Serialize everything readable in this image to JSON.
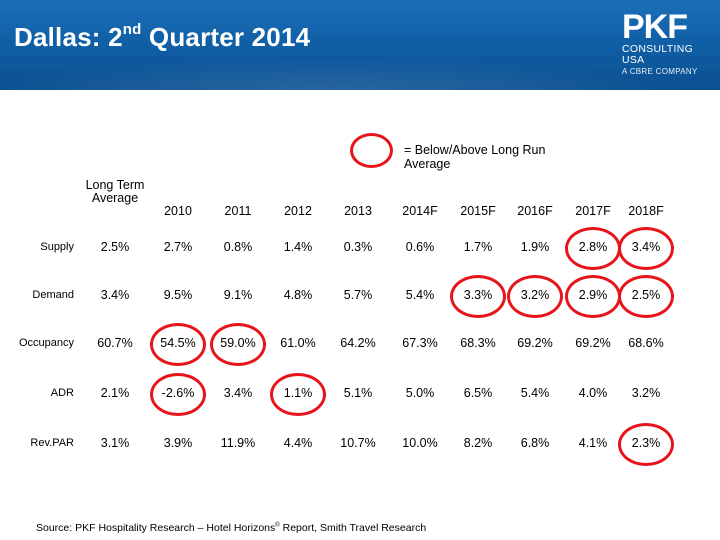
{
  "header": {
    "title_prefix": "Dallas: 2",
    "title_sup": "nd",
    "title_suffix": " Quarter 2014",
    "logo_mark": "PKF",
    "logo_line1": "CONSULTING",
    "logo_line2": "USA",
    "logo_tag": "A CBRE COMPANY"
  },
  "legend": {
    "text": "= Below/Above Long Run Average"
  },
  "columns": [
    "Long Term Average",
    "2010",
    "2011",
    "2012",
    "2013",
    "2014F",
    "2015F",
    "2016F",
    "2017F",
    "2018F"
  ],
  "rows": [
    {
      "label": "Supply",
      "values": [
        "2.5%",
        "2.7%",
        "0.8%",
        "1.4%",
        "0.3%",
        "0.6%",
        "1.7%",
        "1.9%",
        "2.8%",
        "3.4%"
      ]
    },
    {
      "label": "Demand",
      "values": [
        "3.4%",
        "9.5%",
        "9.1%",
        "4.8%",
        "5.7%",
        "5.4%",
        "3.3%",
        "3.2%",
        "2.9%",
        "2.5%"
      ]
    },
    {
      "label": "Occupancy",
      "values": [
        "60.7%",
        "54.5%",
        "59.0%",
        "61.0%",
        "64.2%",
        "67.3%",
        "68.3%",
        "69.2%",
        "69.2%",
        "68.6%"
      ]
    },
    {
      "label": "ADR",
      "values": [
        "2.1%",
        "-2.6%",
        "3.4%",
        "1.1%",
        "5.1%",
        "5.0%",
        "6.5%",
        "5.4%",
        "4.0%",
        "3.2%"
      ]
    },
    {
      "label": "Rev.PAR",
      "values": [
        "3.1%",
        "3.9%",
        "11.9%",
        "4.4%",
        "10.7%",
        "10.0%",
        "8.2%",
        "6.8%",
        "4.1%",
        "2.3%"
      ]
    }
  ],
  "highlighted": [
    {
      "row": 0,
      "col": 8
    },
    {
      "row": 0,
      "col": 9
    },
    {
      "row": 1,
      "col": 6
    },
    {
      "row": 1,
      "col": 7
    },
    {
      "row": 1,
      "col": 8
    },
    {
      "row": 1,
      "col": 9
    },
    {
      "row": 2,
      "col": 1
    },
    {
      "row": 2,
      "col": 2
    },
    {
      "row": 3,
      "col": 1
    },
    {
      "row": 3,
      "col": 3
    },
    {
      "row": 4,
      "col": 9
    }
  ],
  "source": {
    "prefix": "Source: PKF Hospitality Research – Hotel Horizons",
    "reg": "®",
    "suffix": " Report,  Smith Travel Research"
  }
}
